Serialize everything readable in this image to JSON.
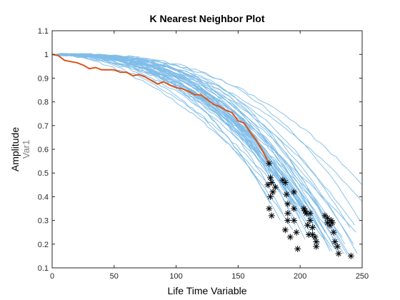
{
  "chart_data": {
    "type": "line",
    "title": "K Nearest Neighbor Plot",
    "xlabel": "Life Time Variable",
    "ylabel": "Amplitude",
    "ylabel_secondary": "Var1",
    "xlim": [
      0,
      250
    ],
    "ylim": [
      0.1,
      1.1
    ],
    "x_ticks": [
      0,
      50,
      100,
      150,
      200,
      250
    ],
    "y_ticks": [
      0.1,
      0.2,
      0.3,
      0.4,
      0.5,
      0.6,
      0.7,
      0.8,
      0.9,
      1,
      1.1
    ],
    "grid": false,
    "box": true,
    "colors": {
      "neighbors": "#80bde8",
      "test": "#d95319",
      "failure_marker": "#000000",
      "axes": "#262626"
    },
    "series": [
      {
        "role": "test",
        "x": [
          0,
          5,
          10,
          15,
          20,
          25,
          30,
          35,
          40,
          45,
          50,
          55,
          60,
          65,
          70,
          75,
          80,
          85,
          90,
          95,
          100,
          105,
          110,
          115,
          120,
          125,
          130,
          135,
          140,
          145,
          150,
          155,
          160,
          165,
          170,
          175
        ],
        "y": [
          1.0,
          0.995,
          0.975,
          0.97,
          0.965,
          0.955,
          0.94,
          0.945,
          0.935,
          0.935,
          0.935,
          0.925,
          0.925,
          0.91,
          0.915,
          0.905,
          0.89,
          0.875,
          0.885,
          0.87,
          0.86,
          0.855,
          0.845,
          0.83,
          0.83,
          0.81,
          0.79,
          0.78,
          0.765,
          0.755,
          0.72,
          0.71,
          0.67,
          0.635,
          0.59,
          0.54
        ]
      }
    ],
    "neighbors": {
      "count": 50,
      "x_start": 0,
      "y_start": 1.0,
      "end_x": [
        175,
        178,
        180,
        188,
        190,
        192,
        195,
        198,
        200,
        203,
        205,
        208,
        210,
        212,
        215,
        218,
        220,
        222,
        225,
        228,
        230,
        232,
        235,
        238,
        240,
        243,
        245,
        248,
        250,
        176,
        186,
        196,
        206,
        216,
        226,
        236,
        246,
        184,
        194,
        204,
        214,
        224,
        234,
        244,
        200,
        210,
        220,
        230,
        240,
        250
      ],
      "end_y": [
        0.45,
        0.48,
        0.44,
        0.47,
        0.42,
        0.4,
        0.36,
        0.34,
        0.33,
        0.35,
        0.32,
        0.3,
        0.29,
        0.27,
        0.25,
        0.24,
        0.22,
        0.21,
        0.19,
        0.18,
        0.17,
        0.16,
        0.16,
        0.155,
        0.15,
        0.2,
        0.25,
        0.3,
        0.38,
        0.37,
        0.33,
        0.28,
        0.24,
        0.2,
        0.17,
        0.2,
        0.16,
        0.3,
        0.26,
        0.22,
        0.19,
        0.17,
        0.23,
        0.28,
        0.31,
        0.29,
        0.25,
        0.21,
        0.27,
        0.45
      ]
    },
    "failure_points": {
      "marker": "*",
      "x": [
        175,
        176,
        177,
        178,
        174,
        176,
        175,
        177,
        180,
        186,
        188,
        189,
        190,
        190,
        190,
        188,
        192,
        195,
        195,
        195,
        197,
        198,
        203,
        204,
        205,
        206,
        207,
        208,
        208,
        210,
        210,
        212,
        213,
        213,
        220,
        222,
        222,
        224,
        225,
        226,
        227,
        228,
        230,
        231,
        241
      ],
      "y": [
        0.54,
        0.48,
        0.46,
        0.42,
        0.45,
        0.4,
        0.35,
        0.32,
        0.44,
        0.47,
        0.46,
        0.41,
        0.37,
        0.33,
        0.3,
        0.26,
        0.23,
        0.42,
        0.35,
        0.3,
        0.25,
        0.18,
        0.35,
        0.34,
        0.33,
        0.28,
        0.24,
        0.33,
        0.3,
        0.27,
        0.24,
        0.23,
        0.21,
        0.19,
        0.32,
        0.31,
        0.29,
        0.28,
        0.3,
        0.29,
        0.25,
        0.21,
        0.19,
        0.16,
        0.15
      ]
    }
  }
}
